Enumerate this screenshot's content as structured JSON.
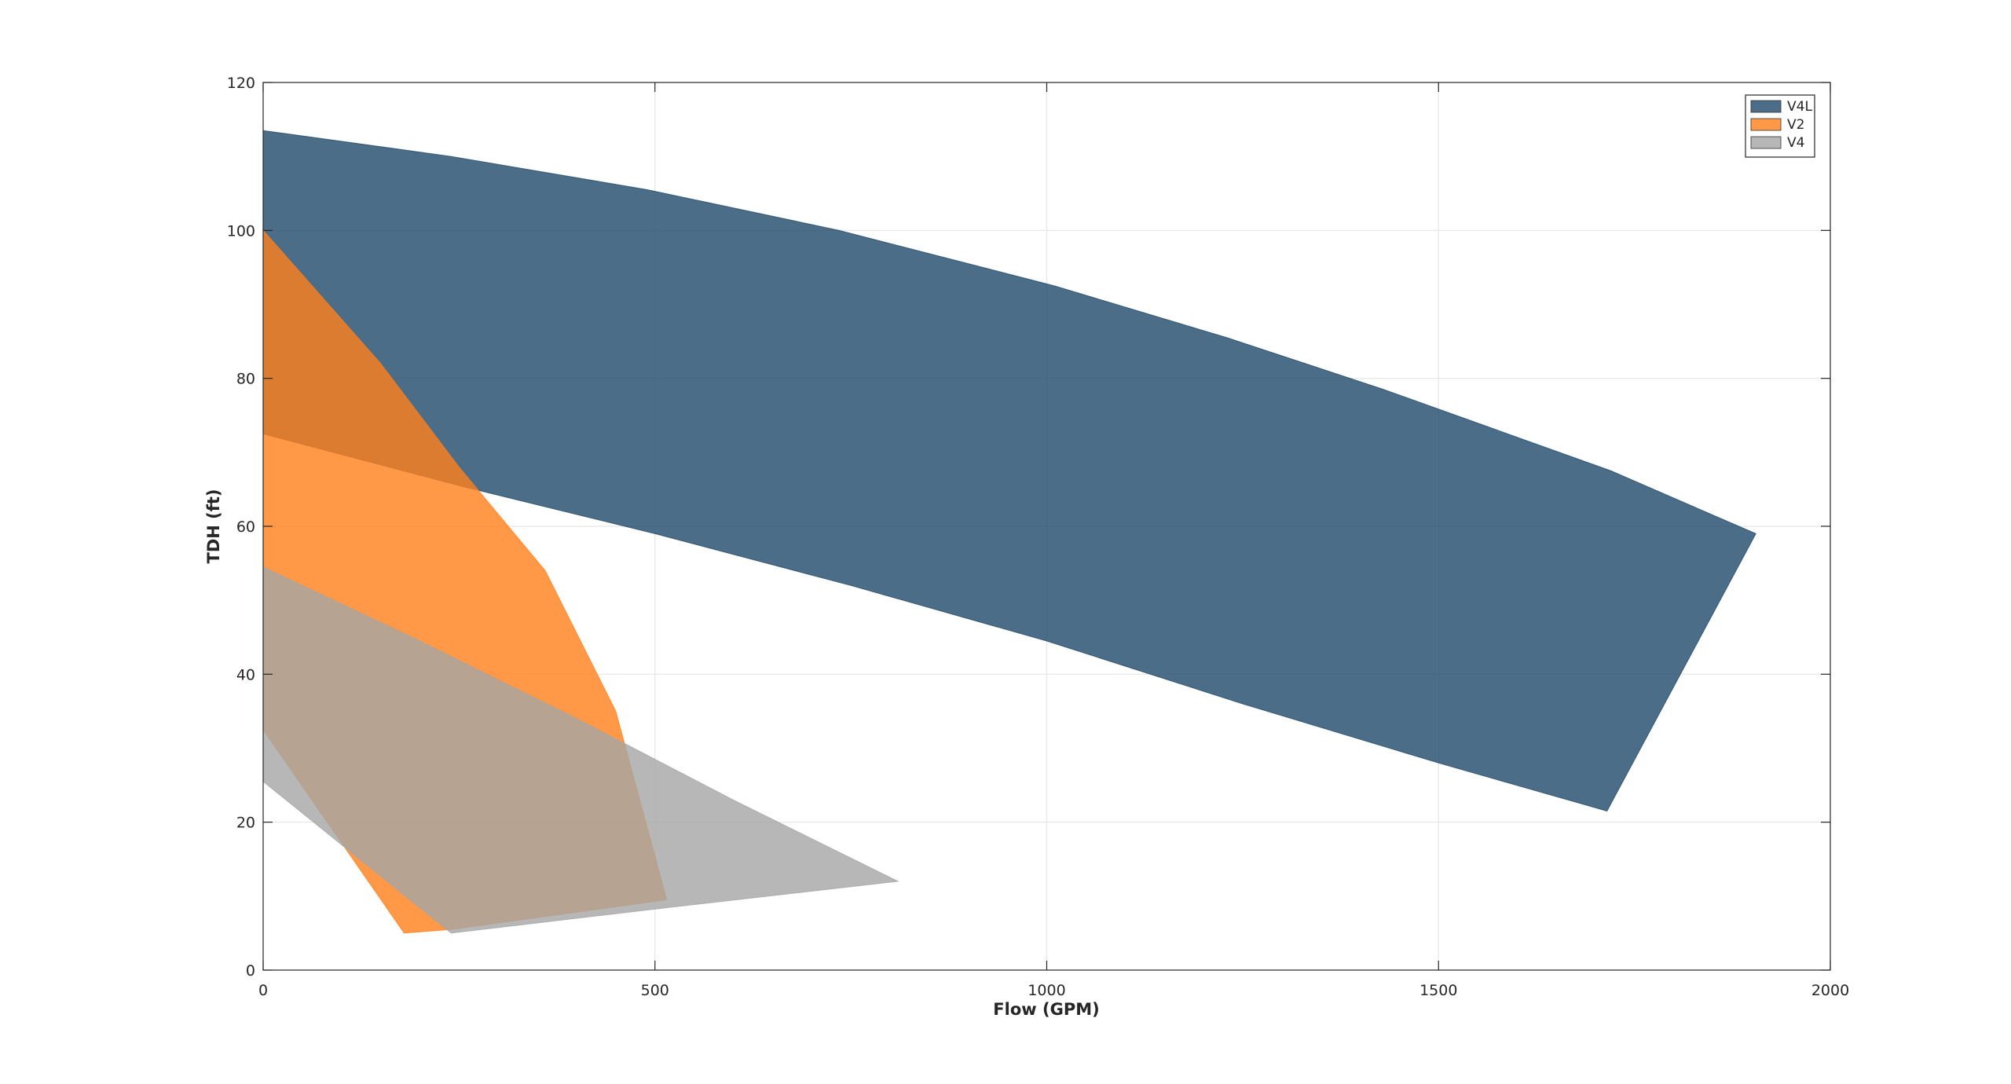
{
  "chart_data": {
    "type": "area",
    "xlabel": "Flow (GPM)",
    "ylabel": "TDH (ft)",
    "xlim": [
      0,
      2000
    ],
    "ylim": [
      0,
      120
    ],
    "xticks": [
      0,
      500,
      1000,
      1500,
      2000
    ],
    "yticks": [
      0,
      20,
      40,
      60,
      80,
      100,
      120
    ],
    "grid": true,
    "legend_location": "top-right",
    "series": [
      {
        "name": "V4L",
        "color": "#1f4869",
        "opacity": 0.8,
        "points": [
          [
            0,
            113.5
          ],
          [
            240,
            110
          ],
          [
            490,
            105.5
          ],
          [
            735,
            100
          ],
          [
            1010,
            92.5
          ],
          [
            1230,
            85.5
          ],
          [
            1430,
            78.5
          ],
          [
            1720,
            67.5
          ],
          [
            1905,
            59
          ],
          [
            1715,
            21.5
          ],
          [
            1500,
            28
          ],
          [
            1250,
            36
          ],
          [
            1000,
            44.5
          ],
          [
            750,
            52
          ],
          [
            500,
            59
          ],
          [
            250,
            65.5
          ],
          [
            0,
            72.5
          ]
        ]
      },
      {
        "name": "V2",
        "color": "#ff7f1a",
        "opacity": 0.8,
        "points": [
          [
            0,
            100
          ],
          [
            150,
            82
          ],
          [
            250,
            68
          ],
          [
            360,
            54
          ],
          [
            450,
            35
          ],
          [
            515,
            9.5
          ],
          [
            240,
            5.5
          ],
          [
            180,
            5
          ],
          [
            0,
            32.5
          ]
        ]
      },
      {
        "name": "V4",
        "color": "#a5a5a5",
        "opacity": 0.8,
        "points": [
          [
            0,
            54.5
          ],
          [
            200,
            44.5
          ],
          [
            400,
            34
          ],
          [
            600,
            23
          ],
          [
            810,
            12
          ],
          [
            520,
            8.5
          ],
          [
            240,
            5
          ],
          [
            0,
            25.5
          ]
        ]
      }
    ]
  }
}
